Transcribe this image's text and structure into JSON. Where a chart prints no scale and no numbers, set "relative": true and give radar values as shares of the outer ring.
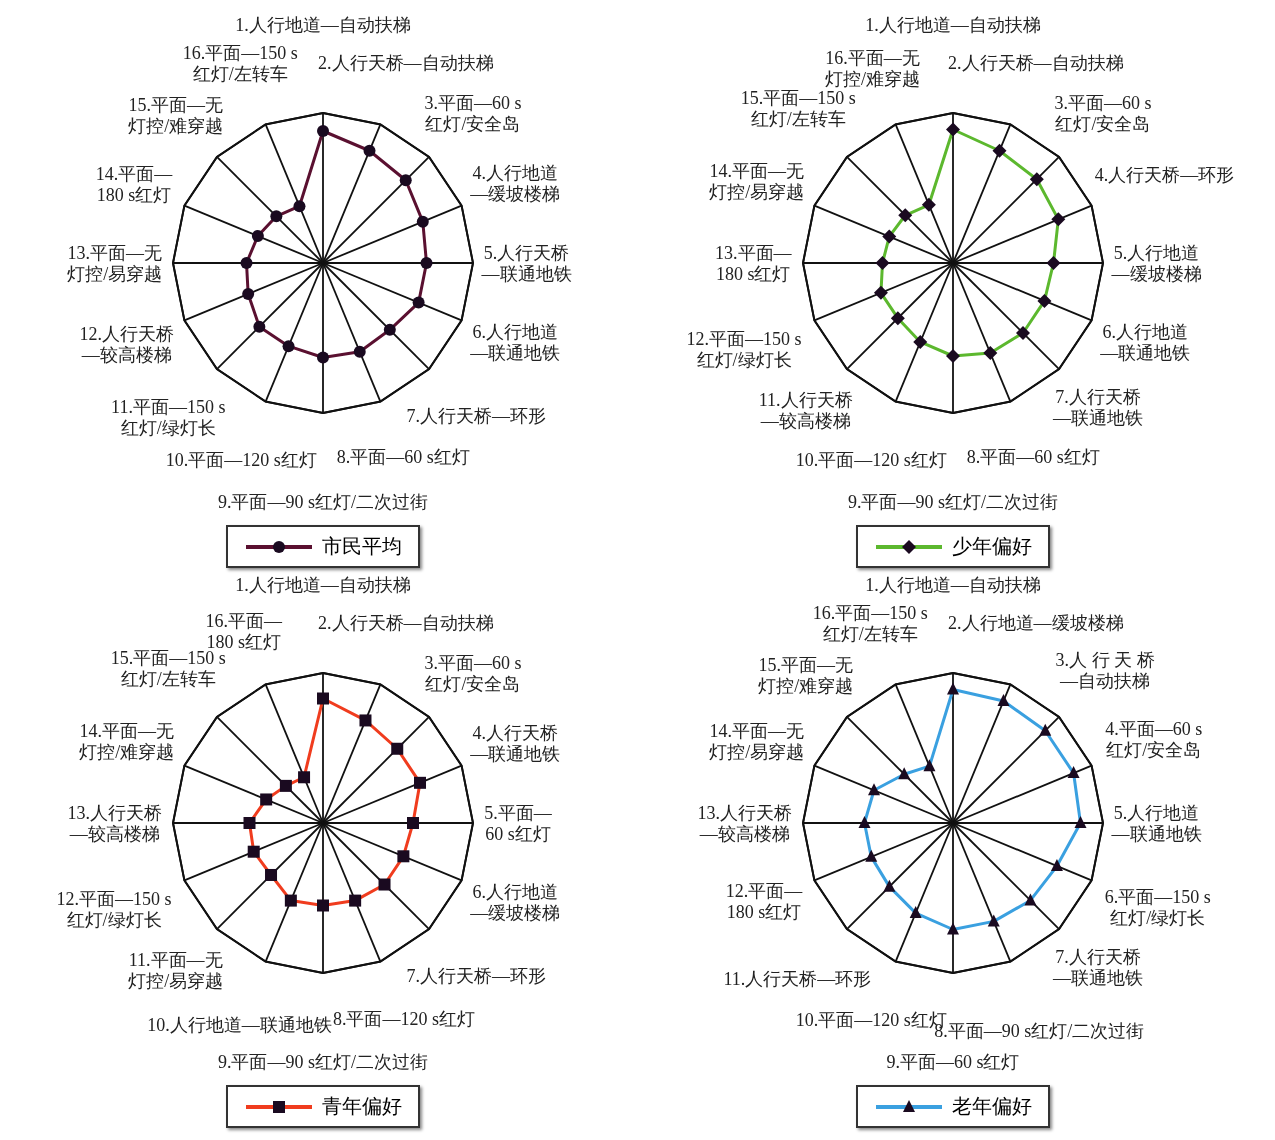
{
  "chart_data": [
    {
      "type": "radar",
      "relative": true,
      "grid": true,
      "legend": "bottom",
      "marker": "circle",
      "line_style": "solid",
      "categories": [
        "1.人行地道—自动扶梯",
        "2.人行天桥—自动扶梯",
        "3.平面—60 s红灯/安全岛",
        "4.人行地道—缓坡楼梯",
        "5.人行天桥—联通地铁",
        "6.人行地道—联通地铁",
        "7.人行天桥—环形",
        "8.平面—60 s红灯",
        "9.平面—90 s红灯/二次过街",
        "10.平面—120 s红灯",
        "11.平面—150 s红灯/绿灯长",
        "12.人行天桥—较高楼梯",
        "13.平面—无灯控/易穿越",
        "14.平面—180 s红灯",
        "15.平面—无灯控/难穿越",
        "16.平面—150 s红灯/左转车"
      ],
      "series": [
        {
          "name": "市民平均",
          "color": "#5a1030",
          "values": [
            0.88,
            0.81,
            0.78,
            0.72,
            0.69,
            0.69,
            0.63,
            0.64,
            0.63,
            0.6,
            0.6,
            0.54,
            0.51,
            0.47,
            0.44,
            0.41
          ]
        }
      ]
    },
    {
      "type": "radar",
      "relative": true,
      "grid": true,
      "legend": "bottom",
      "marker": "diamond",
      "line_style": "solid",
      "categories": [
        "1.人行地道—自动扶梯",
        "2.人行天桥—自动扶梯",
        "3.平面—60 s红灯/安全岛",
        "4.人行天桥—环形",
        "5.人行地道—缓坡楼梯",
        "6.人行地道—联通地铁",
        "7.人行天桥—联通地铁",
        "8.平面—60 s红灯",
        "9.平面—90 s红灯/二次过街",
        "10.平面—120 s红灯",
        "11.人行天桥—较高楼梯",
        "12.平面—150 s红灯/绿灯长",
        "13.平面—180 s红灯",
        "14.平面—无灯控/易穿越",
        "15.平面—150 s红灯/左转车",
        "16.平面—无灯控/难穿越"
      ],
      "series": [
        {
          "name": "少年偏好",
          "color": "#5cb82e",
          "values": [
            0.89,
            0.81,
            0.79,
            0.76,
            0.67,
            0.66,
            0.66,
            0.65,
            0.62,
            0.57,
            0.52,
            0.52,
            0.47,
            0.46,
            0.45,
            0.42
          ]
        }
      ]
    },
    {
      "type": "radar",
      "relative": true,
      "grid": true,
      "legend": "bottom",
      "marker": "square",
      "line_style": "solid",
      "categories": [
        "1.人行地道—自动扶梯",
        "2.人行天桥—自动扶梯",
        "3.平面—60 s红灯/安全岛",
        "4.人行天桥—联通地铁",
        "5.平面—60 s红灯",
        "6.人行地道—缓坡楼梯",
        "7.人行天桥—环形",
        "8.平面—120 s红灯",
        "9.平面—90 s红灯/二次过街",
        "10.人行地道—联通地铁",
        "11.平面—无灯控/易穿越",
        "12.平面—150 s红灯/绿灯长",
        "13.人行天桥—较高楼梯",
        "14.平面—无灯控/难穿越",
        "15.平面—150 s红灯/左转车",
        "16.平面—180 s红灯"
      ],
      "series": [
        {
          "name": "青年偏好",
          "color": "#f03c1e",
          "values": [
            0.83,
            0.74,
            0.7,
            0.7,
            0.6,
            0.58,
            0.58,
            0.56,
            0.55,
            0.56,
            0.49,
            0.5,
            0.49,
            0.41,
            0.35,
            0.33
          ]
        }
      ]
    },
    {
      "type": "radar",
      "relative": true,
      "grid": true,
      "legend": "bottom",
      "marker": "triangle",
      "line_style": "solid",
      "categories": [
        "1.人行地道—自动扶梯",
        "2.人行地道—缓坡楼梯",
        "3.人 行 天 桥—自动扶梯",
        "4.平面—60 s红灯/安全岛",
        "5.人行地道—联通地铁",
        "6.平面—150 s红灯/绿灯长",
        "7.人行天桥—联通地铁",
        "8.平面—90 s红灯/二次过街",
        "9.平面—60 s红灯",
        "10.平面—120 s红灯",
        "11.人行天桥—环形",
        "12.平面—180 s红灯",
        "13.人行天桥—较高楼梯",
        "14.平面—无灯控/易穿越",
        "15.平面—无灯控/难穿越",
        "16.平面—150 s红灯/左转车"
      ],
      "series": [
        {
          "name": "老年偏好",
          "color": "#3aa0e0",
          "values": [
            0.89,
            0.88,
            0.87,
            0.87,
            0.85,
            0.75,
            0.73,
            0.71,
            0.71,
            0.65,
            0.6,
            0.59,
            0.59,
            0.57,
            0.46,
            0.41
          ]
        }
      ]
    }
  ]
}
